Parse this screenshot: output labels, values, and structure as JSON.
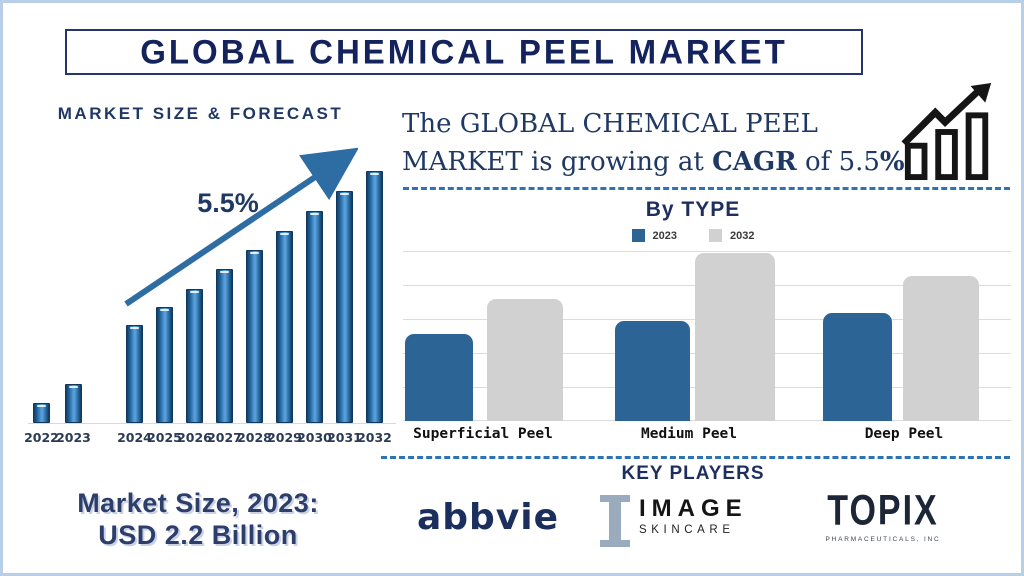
{
  "page": {
    "title": "GLOBAL CHEMICAL PEEL MARKET"
  },
  "left_section": {
    "market_size_line1": "Market Size, 2023:",
    "market_size_line2": "USD 2.2 Billion"
  },
  "headline": {
    "line1": "The GLOBAL CHEMICAL PEEL",
    "line2_pre": "MARKET is growing at ",
    "line2_bold1": "CAGR",
    "line2_mid": " of 5.5",
    "line2_bold2": "%"
  },
  "key_players": {
    "title": "KEY PLAYERS",
    "players": [
      {
        "name": "abbvie"
      },
      {
        "name": "IMAGE",
        "sub": "SKINCARE"
      },
      {
        "name": "TOPIX",
        "sub": "PHARMACEUTICALS, INC"
      }
    ]
  },
  "colors": {
    "navy_text": "#1f3864",
    "title_navy": "#14235c",
    "forecast_bar_blue": "#2e75b6",
    "bytype_blue": "#2d6496",
    "bytype_gray": "#d1d1d1",
    "dash_blue": "#2e74b5",
    "arrow_blue": "#2e6da3",
    "frame_light_blue": "#b9cfe8"
  },
  "chart_data": [
    {
      "id": "market_size_forecast",
      "type": "bar",
      "title": "MARKET SIZE & FORECAST",
      "categories": [
        "2022",
        "2023",
        "2024",
        "2025",
        "2026",
        "2027",
        "2028",
        "2029",
        "2030",
        "2031",
        "2032"
      ],
      "values": [
        20,
        39,
        98,
        116,
        134,
        154,
        173,
        192,
        212,
        232,
        252
      ],
      "value_scale": "relative bar height (values not labeled in source)",
      "annotation": "5.5%",
      "legend_position": "none",
      "grid": false
    },
    {
      "id": "by_type",
      "type": "bar",
      "title": "By TYPE",
      "categories": [
        "Superficial Peel",
        "Medium Peel",
        "Deep Peel"
      ],
      "series": [
        {
          "name": "2023",
          "color": "#2d6496",
          "values": [
            87,
            100,
            108
          ]
        },
        {
          "name": "2032",
          "color": "#d1d1d1",
          "values": [
            122,
            168,
            145
          ]
        }
      ],
      "value_scale": "relative bar height (values not labeled in source)",
      "legend_position": "top",
      "grid": true
    }
  ]
}
